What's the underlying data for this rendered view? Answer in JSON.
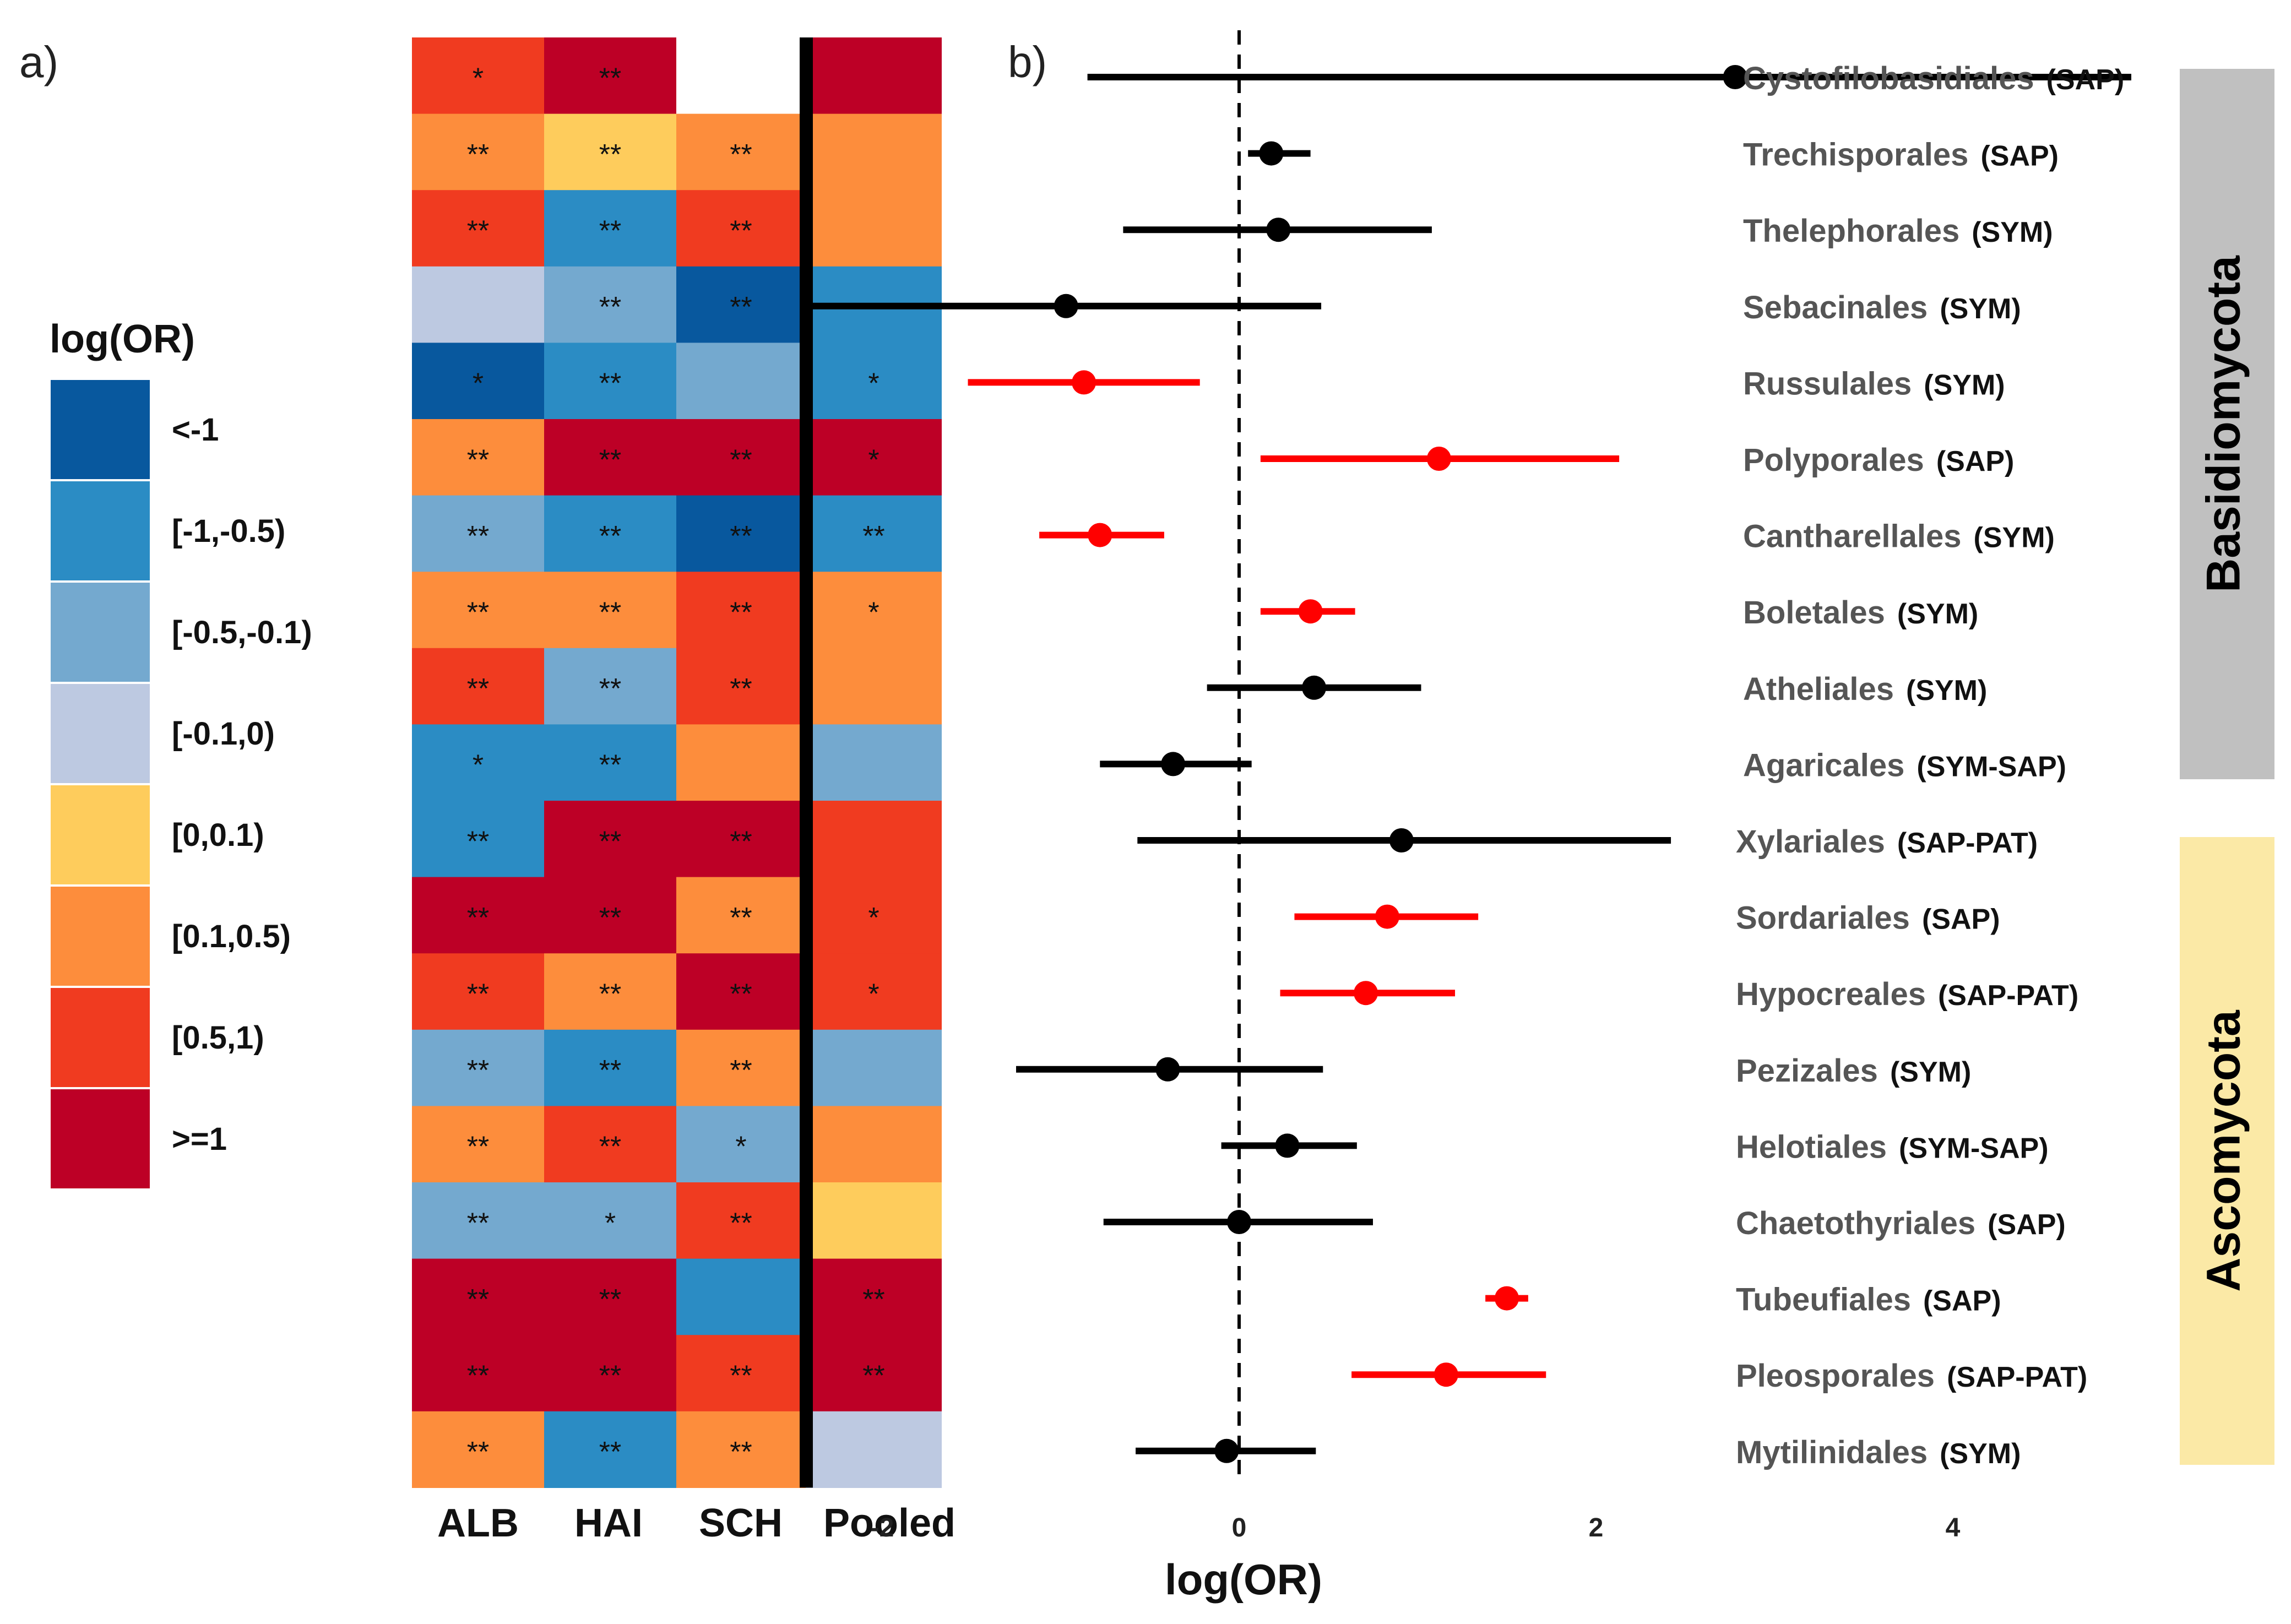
{
  "panel_labels": {
    "a": "a)",
    "b": "b)"
  },
  "legend": {
    "title": "log(OR)",
    "bins": [
      {
        "label": "<-1",
        "color": "#08589e"
      },
      {
        "label": "[-1,-0.5)",
        "color": "#2b8cc4"
      },
      {
        "label": "[-0.5,-0.1)",
        "color": "#74a9cf"
      },
      {
        "label": "[-0.1,0)",
        "color": "#bdc9e1"
      },
      {
        "label": "[0,0.1)",
        "color": "#fecc5c"
      },
      {
        "label": "[0.1,0.5)",
        "color": "#fd8d3c"
      },
      {
        "label": "[0.5,1)",
        "color": "#f03b20"
      },
      {
        "label": ">=1",
        "color": "#bd0026"
      }
    ]
  },
  "chart_data": [
    {
      "type": "heatmap",
      "columns": [
        "ALB",
        "HAI",
        "SCH",
        "Pooled"
      ],
      "rows": [
        "Cystofilobasidiales",
        "Trechisporales",
        "Thelephorales",
        "Sebacinales",
        "Russulales",
        "Polyporales",
        "Cantharellales",
        "Boletales",
        "Atheliales",
        "Agaricales",
        "Xylariales",
        "Sordariales",
        "Hypocreales",
        "Pezizales",
        "Helotiales",
        "Chaetothyriales",
        "Tubeufiales",
        "Pleosporales",
        "Mytilinidales"
      ],
      "bins": [
        [
          6,
          7,
          null,
          7
        ],
        [
          5,
          4,
          5,
          5
        ],
        [
          6,
          1,
          6,
          5
        ],
        [
          3,
          2,
          0,
          1
        ],
        [
          0,
          1,
          2,
          1
        ],
        [
          5,
          7,
          7,
          7
        ],
        [
          2,
          1,
          0,
          1
        ],
        [
          5,
          5,
          6,
          5
        ],
        [
          6,
          2,
          6,
          5
        ],
        [
          1,
          1,
          5,
          2
        ],
        [
          1,
          7,
          7,
          6
        ],
        [
          7,
          7,
          5,
          6
        ],
        [
          6,
          5,
          7,
          6
        ],
        [
          2,
          1,
          5,
          2
        ],
        [
          5,
          6,
          2,
          5
        ],
        [
          2,
          2,
          6,
          4
        ],
        [
          7,
          7,
          1,
          7
        ],
        [
          7,
          7,
          6,
          7
        ],
        [
          5,
          1,
          5,
          3
        ]
      ],
      "significance": [
        [
          "*",
          "**",
          "",
          ""
        ],
        [
          "**",
          "**",
          "**",
          ""
        ],
        [
          "**",
          "**",
          "**",
          ""
        ],
        [
          "",
          "**",
          "**",
          ""
        ],
        [
          "*",
          "**",
          "",
          "*"
        ],
        [
          "**",
          "**",
          "**",
          "*"
        ],
        [
          "**",
          "**",
          "**",
          "**"
        ],
        [
          "**",
          "**",
          "**",
          "*"
        ],
        [
          "**",
          "**",
          "**",
          ""
        ],
        [
          "*",
          "**",
          "",
          ""
        ],
        [
          "**",
          "**",
          "**",
          ""
        ],
        [
          "**",
          "**",
          "**",
          "*"
        ],
        [
          "**",
          "**",
          "**",
          "*"
        ],
        [
          "**",
          "**",
          "**",
          ""
        ],
        [
          "**",
          "**",
          "*",
          ""
        ],
        [
          "**",
          "*",
          "**",
          ""
        ],
        [
          "**",
          "**",
          "",
          "**"
        ],
        [
          "**",
          "**",
          "**",
          "**"
        ],
        [
          "**",
          "**",
          "**",
          ""
        ]
      ]
    },
    {
      "type": "scatter",
      "xlabel": "log(OR)",
      "xticks": [
        -2,
        0,
        2,
        4
      ],
      "xlim": [
        -2.5,
        5
      ],
      "reference_line": 0,
      "labels": [
        {
          "name": "Cystofilobasidiales",
          "group": "(SAP)"
        },
        {
          "name": "Trechisporales",
          "group": "(SAP)"
        },
        {
          "name": "Thelephorales",
          "group": "(SYM)"
        },
        {
          "name": "Sebacinales",
          "group": "(SYM)"
        },
        {
          "name": "Russulales",
          "group": "(SYM)"
        },
        {
          "name": "Polyporales",
          "group": "(SAP)"
        },
        {
          "name": "Cantharellales",
          "group": "(SYM)"
        },
        {
          "name": "Boletales",
          "group": "(SYM)"
        },
        {
          "name": "Atheliales",
          "group": "(SYM)"
        },
        {
          "name": "Agaricales",
          "group": "(SYM-SAP)"
        },
        {
          "name": "Xylariales",
          "group": "(SAP-PAT)"
        },
        {
          "name": "Sordariales",
          "group": "(SAP)"
        },
        {
          "name": "Hypocreales",
          "group": "(SAP-PAT)"
        },
        {
          "name": "Pezizales",
          "group": "(SYM)"
        },
        {
          "name": "Helotiales",
          "group": "(SYM-SAP)"
        },
        {
          "name": "Chaetothyriales",
          "group": "(SAP)"
        },
        {
          "name": "Tubeufiales",
          "group": "(SAP)"
        },
        {
          "name": "Pleosporales",
          "group": "(SAP-PAT)"
        },
        {
          "name": "Mytilinidales",
          "group": "(SYM)"
        }
      ],
      "estimates": [
        2.78,
        0.18,
        0.22,
        -0.97,
        -0.87,
        1.12,
        -0.78,
        0.4,
        0.42,
        -0.37,
        0.91,
        0.83,
        0.71,
        -0.4,
        0.27,
        0.0,
        1.5,
        1.16,
        -0.07
      ],
      "lower": [
        -0.85,
        0.05,
        -0.65,
        -2.4,
        -1.52,
        0.12,
        -1.12,
        0.12,
        -0.18,
        -0.78,
        -0.57,
        0.31,
        0.23,
        -1.25,
        -0.1,
        -0.76,
        1.38,
        0.63,
        -0.58
      ],
      "upper": [
        5.0,
        0.4,
        1.08,
        0.46,
        -0.22,
        2.13,
        -0.42,
        0.65,
        1.02,
        0.07,
        2.42,
        1.34,
        1.21,
        0.47,
        0.66,
        0.75,
        1.62,
        1.72,
        0.43
      ],
      "significant": [
        false,
        false,
        false,
        false,
        true,
        true,
        true,
        true,
        false,
        false,
        false,
        true,
        true,
        false,
        false,
        false,
        true,
        true,
        false
      ],
      "colors": {
        "significant": "#ff0000",
        "not_significant": "#000000"
      },
      "groups": [
        {
          "label": "Basidiomycota",
          "from_row": 0,
          "to_row": 9,
          "color": "#c0c0c0"
        },
        {
          "label": "Ascomycota",
          "from_row": 10,
          "to_row": 18,
          "color": "#fbe9a6"
        }
      ]
    }
  ]
}
